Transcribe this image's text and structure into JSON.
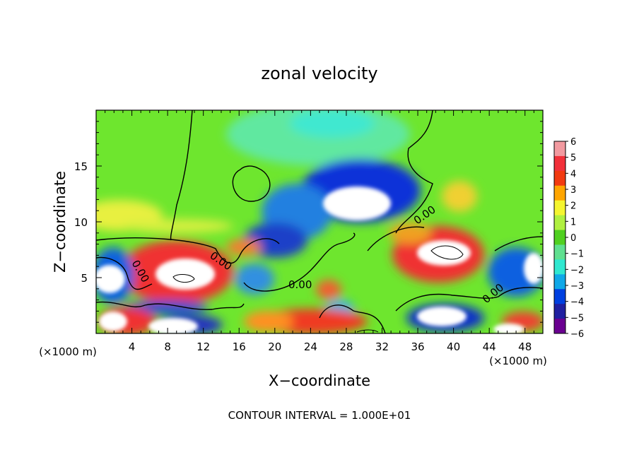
{
  "chart_data": {
    "type": "heatmap",
    "title": "zonal velocity",
    "xlabel": "X−coordinate",
    "ylabel": "Z−coordinate",
    "x_unit_left": "(×1000 m)",
    "x_unit_right": "(×1000 m)",
    "footer": "CONTOUR INTERVAL = 1.000E+01",
    "xlim": [
      0,
      50
    ],
    "ylim": [
      0,
      20
    ],
    "x_ticks": [
      4,
      8,
      12,
      16,
      20,
      24,
      28,
      32,
      36,
      40,
      44,
      48
    ],
    "y_ticks": [
      5,
      10,
      15
    ],
    "colorbar": {
      "labels": [
        6,
        5,
        4,
        3,
        2,
        1,
        0,
        -1,
        -2,
        -3,
        -4,
        -5,
        -6
      ],
      "colors": [
        "#f29aa0",
        "#f2303a",
        "#f23a10",
        "#ffa500",
        "#f5f530",
        "#b0f040",
        "#50d020",
        "#60e090",
        "#30e8d0",
        "#10a8e8",
        "#0040e0",
        "#2020a0",
        "#6a0090"
      ]
    },
    "contour_labels": [
      "0.00",
      "0.00",
      "0.00",
      "0.00",
      "0.00"
    ]
  }
}
